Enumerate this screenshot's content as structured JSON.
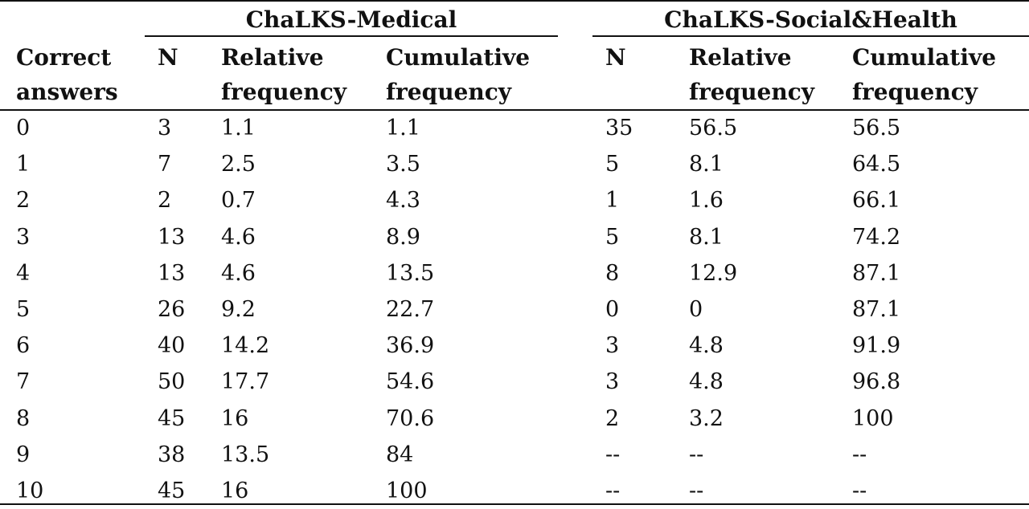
{
  "table": {
    "groups": [
      "ChaLKS-Medical",
      "ChaLKS-Social&Health"
    ],
    "headers": {
      "correct_line1": "Correct",
      "correct_line2": "answers",
      "n": "N",
      "rel_line1": "Relative",
      "rel_line2": "frequency",
      "cum_line1": "Cumulative",
      "cum_line2": "frequency"
    },
    "rows": [
      [
        "0",
        "3",
        "1.1",
        "1.1",
        "35",
        "56.5",
        "56.5"
      ],
      [
        "1",
        "7",
        "2.5",
        "3.5",
        "5",
        "8.1",
        "64.5"
      ],
      [
        "2",
        "2",
        "0.7",
        "4.3",
        "1",
        "1.6",
        "66.1"
      ],
      [
        "3",
        "13",
        "4.6",
        "8.9",
        "5",
        "8.1",
        "74.2"
      ],
      [
        "4",
        "13",
        "4.6",
        "13.5",
        "8",
        "12.9",
        "87.1"
      ],
      [
        "5",
        "26",
        "9.2",
        "22.7",
        "0",
        "0",
        "87.1"
      ],
      [
        "6",
        "40",
        "14.2",
        "36.9",
        "3",
        "4.8",
        "91.9"
      ],
      [
        "7",
        "50",
        "17.7",
        "54.6",
        "3",
        "4.8",
        "96.8"
      ],
      [
        "8",
        "45",
        "16",
        "70.6",
        "2",
        "3.2",
        "100"
      ],
      [
        "9",
        "38",
        "13.5",
        "84",
        "--",
        "--",
        "--"
      ],
      [
        "10",
        "45",
        "16",
        "100",
        "--",
        "--",
        "--"
      ]
    ]
  }
}
